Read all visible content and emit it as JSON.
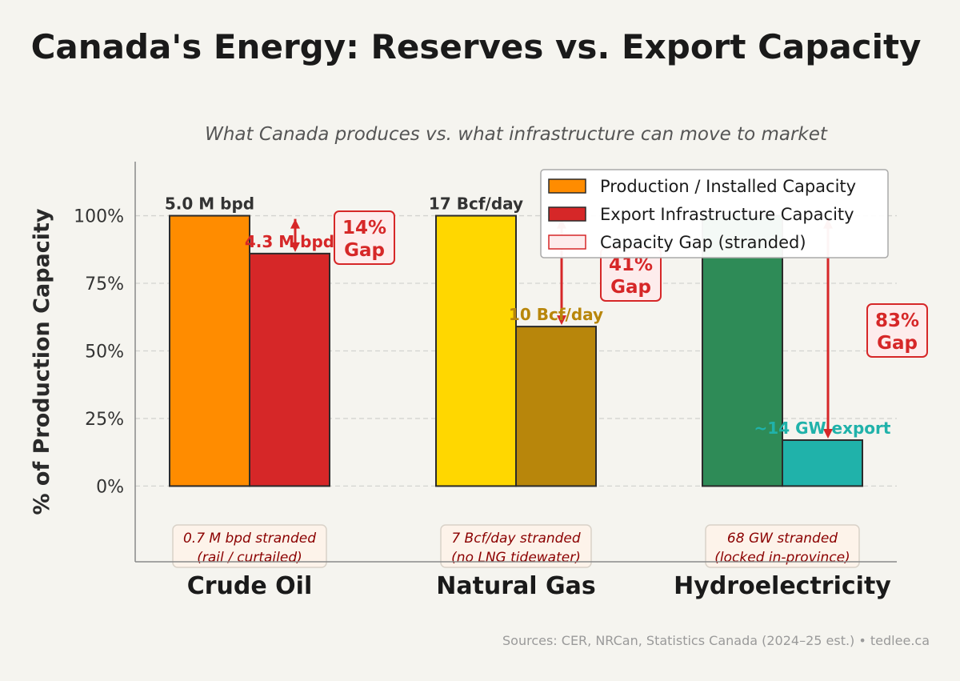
{
  "chart_data": {
    "type": "bar",
    "title": "Canada's Energy: Reserves vs. Export Capacity",
    "subtitle": "What Canada produces vs. what infrastructure can move to market",
    "ylabel": "% of Production Capacity",
    "xlabel": "",
    "ylim": [
      -28,
      120
    ],
    "yticks": [
      0,
      25,
      50,
      75,
      100
    ],
    "ytick_labels": [
      "0%",
      "25%",
      "50%",
      "75%",
      "100%"
    ],
    "grid": "horizontal dashed",
    "legend_position": "top-right",
    "legend": [
      "Production / Installed Capacity",
      "Export Infrastructure Capacity",
      "Capacity Gap (stranded)"
    ],
    "categories": [
      "Crude Oil",
      "Natural Gas",
      "Hydroelectricity"
    ],
    "series": [
      {
        "name": "Production / Installed Capacity",
        "values": [
          100,
          100,
          100
        ],
        "labels": [
          "5.0 M bpd",
          "17 Bcf/day",
          ""
        ],
        "colors": [
          "#ff8c00",
          "#ffd700",
          "#2e8b57"
        ]
      },
      {
        "name": "Export Infrastructure Capacity",
        "values": [
          86,
          59,
          17
        ],
        "labels": [
          "4.3 M bpd",
          "10 Bcf/day",
          "~14 GW export"
        ],
        "colors": [
          "#d62728",
          "#b8860b",
          "#20b2aa"
        ]
      }
    ],
    "gaps": [
      "14%\nGap",
      "41%\nGap",
      "83%\nGap"
    ],
    "stranded": [
      "0.7 M bpd stranded\n(rail / curtailed)",
      "7 Bcf/day stranded\n(no LNG tidewater)",
      "68 GW stranded\n(locked in-province)"
    ],
    "source": "Sources: CER, NRCan, Statistics Canada (2024–25 est.)  •  tedlee.ca"
  }
}
